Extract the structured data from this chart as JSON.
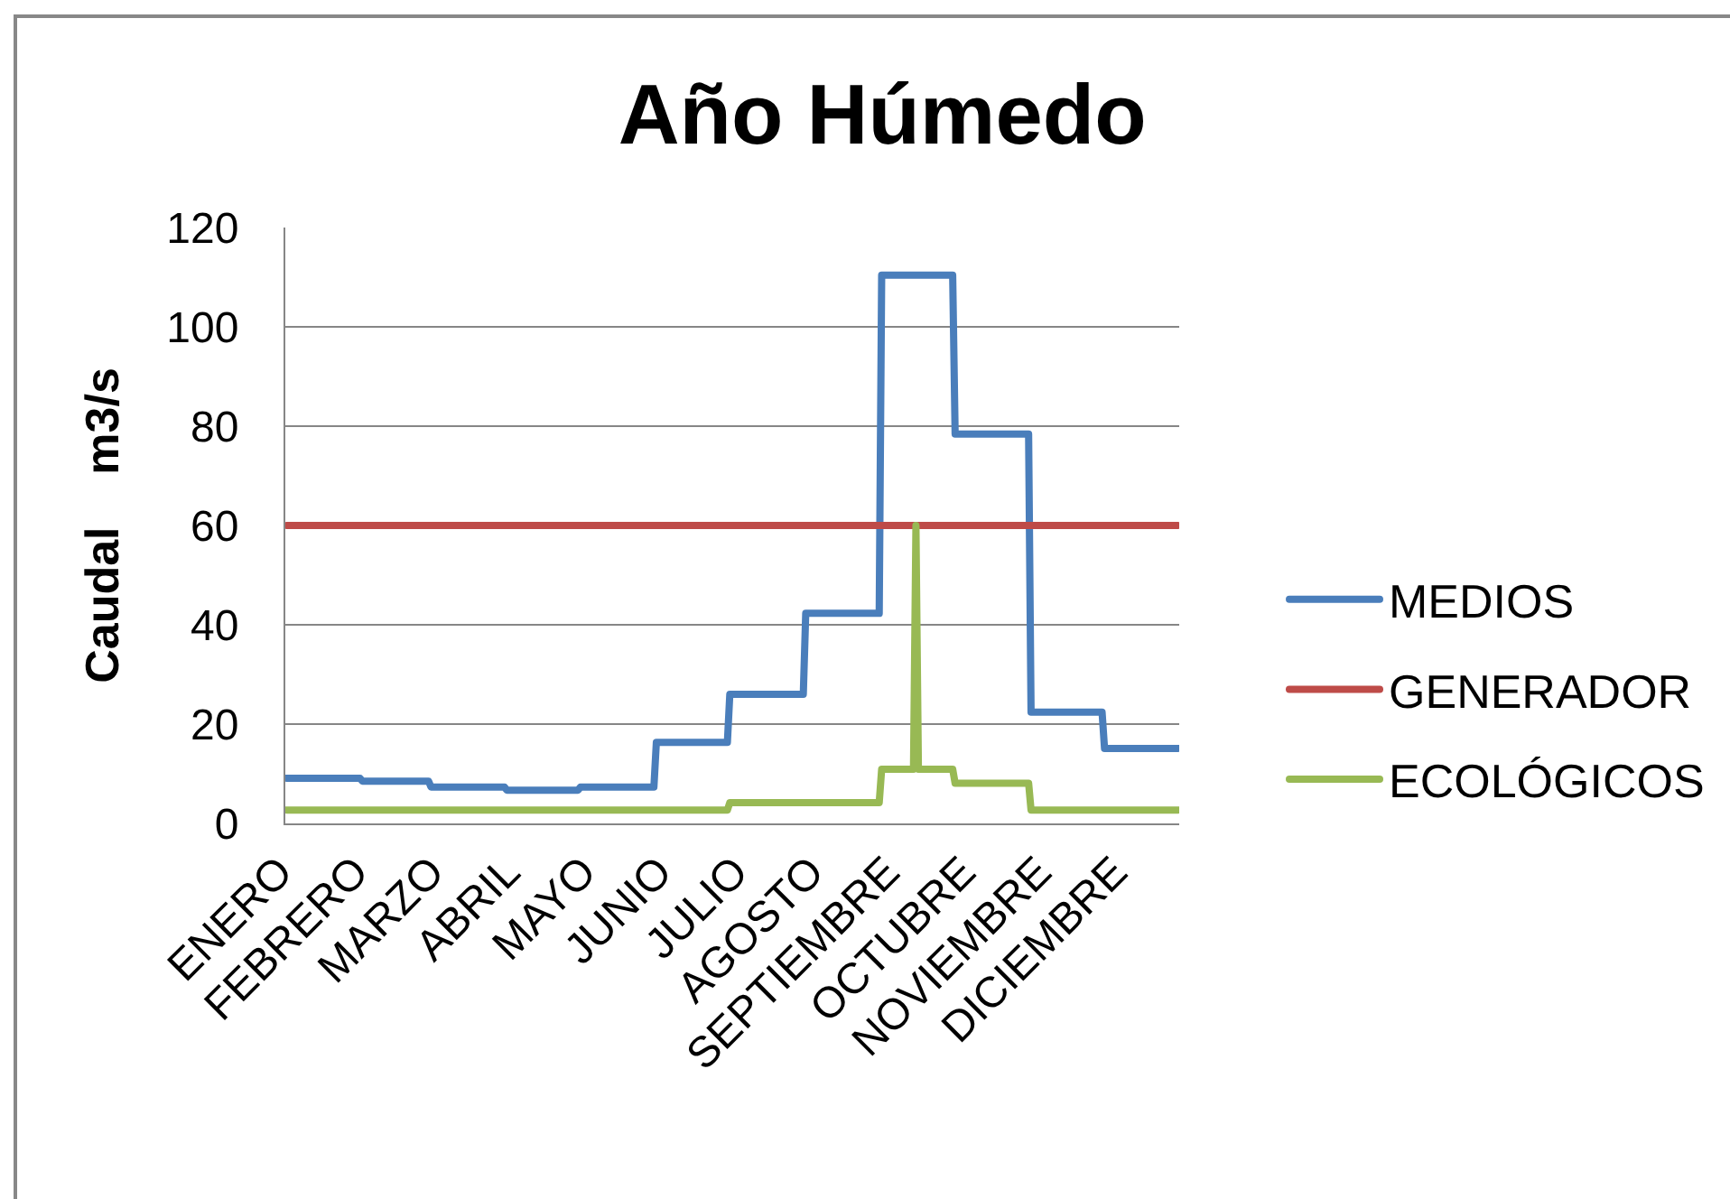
{
  "chart_data": {
    "type": "line",
    "title": "Año Húmedo",
    "ylabel": "Caudal    m3/s",
    "categories": [
      "ENERO",
      null,
      null,
      null,
      null,
      null,
      null,
      null,
      null,
      null,
      null,
      null,
      null,
      null,
      null,
      null,
      null,
      null,
      null,
      null,
      null,
      null,
      null,
      null,
      null,
      null,
      null,
      null,
      null,
      null,
      null,
      "FEBRERO",
      null,
      null,
      null,
      null,
      null,
      null,
      null,
      null,
      null,
      null,
      null,
      null,
      null,
      null,
      null,
      null,
      null,
      null,
      null,
      null,
      null,
      null,
      null,
      null,
      null,
      null,
      null,
      null,
      null,
      null,
      "MARZO",
      null,
      null,
      null,
      null,
      null,
      null,
      null,
      null,
      null,
      null,
      null,
      null,
      null,
      null,
      null,
      null,
      null,
      null,
      null,
      null,
      null,
      null,
      null,
      null,
      null,
      null,
      null,
      null,
      null,
      null,
      "ABRIL",
      null,
      null,
      null,
      null,
      null,
      null,
      null,
      null,
      null,
      null,
      null,
      null,
      null,
      null,
      null,
      null,
      null,
      null,
      null,
      null,
      null,
      null,
      null,
      null,
      null,
      null,
      null,
      null,
      null,
      null,
      "MAYO",
      null,
      null,
      null,
      null,
      null,
      null,
      null,
      null,
      null,
      null,
      null,
      null,
      null,
      null,
      null,
      null,
      null,
      null,
      null,
      null,
      null,
      null,
      null,
      null,
      null,
      null,
      null,
      null,
      null,
      null,
      "JUNIO",
      null,
      null,
      null,
      null,
      null,
      null,
      null,
      null,
      null,
      null,
      null,
      null,
      null,
      null,
      null,
      null,
      null,
      null,
      null,
      null,
      null,
      null,
      null,
      null,
      null,
      null,
      null,
      null,
      null,
      null,
      "JULIO",
      null,
      null,
      null,
      null,
      null,
      null,
      null,
      null,
      null,
      null,
      null,
      null,
      null,
      null,
      null,
      null,
      null,
      null,
      null,
      null,
      null,
      null,
      null,
      null,
      null,
      null,
      null,
      null,
      null,
      null,
      "AGOSTO",
      null,
      null,
      null,
      null,
      null,
      null,
      null,
      null,
      null,
      null,
      null,
      null,
      null,
      null,
      null,
      null,
      null,
      null,
      null,
      null,
      null,
      null,
      null,
      null,
      null,
      null,
      null,
      null,
      null,
      null,
      "SEPTIEMBRE",
      null,
      null,
      null,
      null,
      null,
      null,
      null,
      null,
      null,
      null,
      null,
      null,
      null,
      null,
      null,
      null,
      null,
      null,
      null,
      null,
      null,
      null,
      null,
      null,
      null,
      null,
      null,
      null,
      null,
      null,
      "OCTUBRE",
      null,
      null,
      null,
      null,
      null,
      null,
      null,
      null,
      null,
      null,
      null,
      null,
      null,
      null,
      null,
      null,
      null,
      null,
      null,
      null,
      null,
      null,
      null,
      null,
      null,
      null,
      null,
      null,
      null,
      null,
      "NOVIEMBRE",
      null,
      null,
      null,
      null,
      null,
      null,
      null,
      null,
      null,
      null,
      null,
      null,
      null,
      null,
      null,
      null,
      null,
      null,
      null,
      null,
      null,
      null,
      null,
      null,
      null,
      null,
      null,
      null,
      null,
      null,
      "DICIEMBRE",
      null,
      null,
      null,
      null,
      null,
      null,
      null,
      null,
      null,
      null,
      null,
      null,
      null,
      null,
      null,
      null,
      null,
      null,
      null,
      null,
      null,
      null,
      null
    ],
    "ylim": [
      0,
      120
    ],
    "yticks": [
      0,
      20,
      40,
      60,
      80,
      100,
      120
    ],
    "grid": "y",
    "legend": "right",
    "series": [
      {
        "name": "MEDIOS",
        "color": "#4a7ebb",
        "values": [
          9.1,
          9.1,
          9.1,
          9.1,
          9.1,
          9.1,
          9.1,
          9.1,
          9.1,
          9.1,
          9.1,
          9.1,
          9.1,
          9.1,
          9.1,
          9.1,
          9.1,
          9.1,
          9.1,
          9.1,
          9.1,
          9.1,
          9.1,
          9.1,
          9.1,
          9.1,
          9.1,
          9.1,
          9.1,
          9.1,
          9.1,
          8.5,
          8.5,
          8.5,
          8.5,
          8.5,
          8.5,
          8.5,
          8.5,
          8.5,
          8.5,
          8.5,
          8.5,
          8.5,
          8.5,
          8.5,
          8.5,
          8.5,
          8.5,
          8.5,
          8.5,
          8.5,
          8.5,
          8.5,
          8.5,
          8.5,
          8.5,
          8.5,
          8.5,
          7.3,
          7.3,
          7.3,
          7.3,
          7.3,
          7.3,
          7.3,
          7.3,
          7.3,
          7.3,
          7.3,
          7.3,
          7.3,
          7.3,
          7.3,
          7.3,
          7.3,
          7.3,
          7.3,
          7.3,
          7.3,
          7.3,
          7.3,
          7.3,
          7.3,
          7.3,
          7.3,
          7.3,
          7.3,
          7.3,
          7.3,
          6.7,
          6.7,
          6.7,
          6.7,
          6.7,
          6.7,
          6.7,
          6.7,
          6.7,
          6.7,
          6.7,
          6.7,
          6.7,
          6.7,
          6.7,
          6.7,
          6.7,
          6.7,
          6.7,
          6.7,
          6.7,
          6.7,
          6.7,
          6.7,
          6.7,
          6.7,
          6.7,
          6.7,
          6.7,
          6.7,
          7.3,
          7.3,
          7.3,
          7.3,
          7.3,
          7.3,
          7.3,
          7.3,
          7.3,
          7.3,
          7.3,
          7.3,
          7.3,
          7.3,
          7.3,
          7.3,
          7.3,
          7.3,
          7.3,
          7.3,
          7.3,
          7.3,
          7.3,
          7.3,
          7.3,
          7.3,
          7.3,
          7.3,
          7.3,
          7.3,
          7.3,
          16.3,
          16.3,
          16.3,
          16.3,
          16.3,
          16.3,
          16.3,
          16.3,
          16.3,
          16.3,
          16.3,
          16.3,
          16.3,
          16.3,
          16.3,
          16.3,
          16.3,
          16.3,
          16.3,
          16.3,
          16.3,
          16.3,
          16.3,
          16.3,
          16.3,
          16.3,
          16.3,
          16.3,
          16.3,
          16.3,
          26,
          26,
          26,
          26,
          26,
          26,
          26,
          26,
          26,
          26,
          26,
          26,
          26,
          26,
          26,
          26,
          26,
          26,
          26,
          26,
          26,
          26,
          26,
          26,
          26,
          26,
          26,
          26,
          26,
          26,
          26,
          42.3,
          42.3,
          42.3,
          42.3,
          42.3,
          42.3,
          42.3,
          42.3,
          42.3,
          42.3,
          42.3,
          42.3,
          42.3,
          42.3,
          42.3,
          42.3,
          42.3,
          42.3,
          42.3,
          42.3,
          42.3,
          42.3,
          42.3,
          42.3,
          42.3,
          42.3,
          42.3,
          42.3,
          42.3,
          42.3,
          42.3,
          110.4,
          110.4,
          110.4,
          110.4,
          110.4,
          110.4,
          110.4,
          110.4,
          110.4,
          110.4,
          110.4,
          110.4,
          110.4,
          110.4,
          110.4,
          110.4,
          110.4,
          110.4,
          110.4,
          110.4,
          110.4,
          110.4,
          110.4,
          110.4,
          110.4,
          110.4,
          110.4,
          110.4,
          110.4,
          110.4,
          78.4,
          78.4,
          78.4,
          78.4,
          78.4,
          78.4,
          78.4,
          78.4,
          78.4,
          78.4,
          78.4,
          78.4,
          78.4,
          78.4,
          78.4,
          78.4,
          78.4,
          78.4,
          78.4,
          78.4,
          78.4,
          78.4,
          78.4,
          78.4,
          78.4,
          78.4,
          78.4,
          78.4,
          78.4,
          78.4,
          78.4,
          22.4,
          22.4,
          22.4,
          22.4,
          22.4,
          22.4,
          22.4,
          22.4,
          22.4,
          22.4,
          22.4,
          22.4,
          22.4,
          22.4,
          22.4,
          22.4,
          22.4,
          22.4,
          22.4,
          22.4,
          22.4,
          22.4,
          22.4,
          22.4,
          22.4,
          22.4,
          22.4,
          22.4,
          22.4,
          22.4,
          15.1,
          15.1,
          15.1,
          15.1,
          15.1,
          15.1,
          15.1,
          15.1,
          15.1,
          15.1,
          15.1,
          15.1,
          15.1,
          15.1,
          15.1,
          15.1,
          15.1,
          15.1,
          15.1,
          15.1,
          15.1,
          15.1,
          15.1,
          15.1,
          15.1,
          15.1,
          15.1,
          15.1,
          15.1,
          15.1,
          15.1
        ]
      },
      {
        "name": "GENERADOR",
        "color": "#be4b48",
        "values": [
          60,
          60,
          60,
          60,
          60,
          60,
          60,
          60,
          60,
          60,
          60,
          60,
          60,
          60,
          60,
          60,
          60,
          60,
          60,
          60,
          60,
          60,
          60,
          60,
          60,
          60,
          60,
          60,
          60,
          60,
          60,
          60,
          60,
          60,
          60,
          60,
          60,
          60,
          60,
          60,
          60,
          60,
          60,
          60,
          60,
          60,
          60,
          60,
          60,
          60,
          60,
          60,
          60,
          60,
          60,
          60,
          60,
          60,
          60,
          60,
          60,
          60,
          60,
          60,
          60,
          60,
          60,
          60,
          60,
          60,
          60,
          60,
          60,
          60,
          60,
          60,
          60,
          60,
          60,
          60,
          60,
          60,
          60,
          60,
          60,
          60,
          60,
          60,
          60,
          60,
          60,
          60,
          60,
          60,
          60,
          60,
          60,
          60,
          60,
          60,
          60,
          60,
          60,
          60,
          60,
          60,
          60,
          60,
          60,
          60,
          60,
          60,
          60,
          60,
          60,
          60,
          60,
          60,
          60,
          60,
          60,
          60,
          60,
          60,
          60,
          60,
          60,
          60,
          60,
          60,
          60,
          60,
          60,
          60,
          60,
          60,
          60,
          60,
          60,
          60,
          60,
          60,
          60,
          60,
          60,
          60,
          60,
          60,
          60,
          60,
          60,
          60,
          60,
          60,
          60,
          60,
          60,
          60,
          60,
          60,
          60,
          60,
          60,
          60,
          60,
          60,
          60,
          60,
          60,
          60,
          60,
          60,
          60,
          60,
          60,
          60,
          60,
          60,
          60,
          60,
          60,
          60,
          60,
          60,
          60,
          60,
          60,
          60,
          60,
          60,
          60,
          60,
          60,
          60,
          60,
          60,
          60,
          60,
          60,
          60,
          60,
          60,
          60,
          60,
          60,
          60,
          60,
          60,
          60,
          60,
          60,
          60,
          60,
          60,
          60,
          60,
          60,
          60,
          60,
          60,
          60,
          60,
          60,
          60,
          60,
          60,
          60,
          60,
          60,
          60,
          60,
          60,
          60,
          60,
          60,
          60,
          60,
          60,
          60,
          60,
          60,
          60,
          60,
          60,
          60,
          60,
          60,
          60,
          60,
          60,
          60,
          60,
          60,
          60,
          60,
          60,
          60,
          60,
          60,
          60,
          60,
          60,
          60,
          60,
          60,
          60,
          60,
          60,
          60,
          60,
          60,
          60,
          60,
          60,
          60,
          60,
          60,
          60,
          60,
          60,
          60,
          60,
          60,
          60,
          60,
          60,
          60,
          60,
          60,
          60,
          60,
          60,
          60,
          60,
          60,
          60,
          60,
          60,
          60,
          60,
          60,
          60,
          60,
          60,
          60,
          60,
          60,
          60,
          60,
          60,
          60,
          60,
          60,
          60,
          60,
          60,
          60,
          60,
          60,
          60,
          60,
          60,
          60,
          60,
          60,
          60,
          60,
          60,
          60,
          60,
          60,
          60,
          60,
          60,
          60,
          60,
          60,
          60,
          60,
          60,
          60,
          60,
          60,
          60,
          60,
          60,
          60,
          60,
          60,
          60,
          60,
          60,
          60,
          60,
          60,
          60,
          60,
          60,
          60,
          60,
          60,
          60,
          60,
          60,
          60
        ]
      },
      {
        "name": "ECOLÓGICOS",
        "color": "#98b954",
        "values": [
          2.7,
          2.7,
          2.7,
          2.7,
          2.7,
          2.7,
          2.7,
          2.7,
          2.7,
          2.7,
          2.7,
          2.7,
          2.7,
          2.7,
          2.7,
          2.7,
          2.7,
          2.7,
          2.7,
          2.7,
          2.7,
          2.7,
          2.7,
          2.7,
          2.7,
          2.7,
          2.7,
          2.7,
          2.7,
          2.7,
          2.7,
          2.7,
          2.7,
          2.7,
          2.7,
          2.7,
          2.7,
          2.7,
          2.7,
          2.7,
          2.7,
          2.7,
          2.7,
          2.7,
          2.7,
          2.7,
          2.7,
          2.7,
          2.7,
          2.7,
          2.7,
          2.7,
          2.7,
          2.7,
          2.7,
          2.7,
          2.7,
          2.7,
          2.7,
          2.7,
          2.7,
          2.7,
          2.7,
          2.7,
          2.7,
          2.7,
          2.7,
          2.7,
          2.7,
          2.7,
          2.7,
          2.7,
          2.7,
          2.7,
          2.7,
          2.7,
          2.7,
          2.7,
          2.7,
          2.7,
          2.7,
          2.7,
          2.7,
          2.7,
          2.7,
          2.7,
          2.7,
          2.7,
          2.7,
          2.7,
          2.7,
          2.7,
          2.7,
          2.7,
          2.7,
          2.7,
          2.7,
          2.7,
          2.7,
          2.7,
          2.7,
          2.7,
          2.7,
          2.7,
          2.7,
          2.7,
          2.7,
          2.7,
          2.7,
          2.7,
          2.7,
          2.7,
          2.7,
          2.7,
          2.7,
          2.7,
          2.7,
          2.7,
          2.7,
          2.7,
          2.7,
          2.7,
          2.7,
          2.7,
          2.7,
          2.7,
          2.7,
          2.7,
          2.7,
          2.7,
          2.7,
          2.7,
          2.7,
          2.7,
          2.7,
          2.7,
          2.7,
          2.7,
          2.7,
          2.7,
          2.7,
          2.7,
          2.7,
          2.7,
          2.7,
          2.7,
          2.7,
          2.7,
          2.7,
          2.7,
          2.7,
          2.7,
          2.7,
          2.7,
          2.7,
          2.7,
          2.7,
          2.7,
          2.7,
          2.7,
          2.7,
          2.7,
          2.7,
          2.7,
          2.7,
          2.7,
          2.7,
          2.7,
          2.7,
          2.7,
          2.7,
          2.7,
          2.7,
          2.7,
          2.7,
          2.7,
          2.7,
          2.7,
          2.7,
          2.7,
          2.7,
          4.2,
          4.2,
          4.2,
          4.2,
          4.2,
          4.2,
          4.2,
          4.2,
          4.2,
          4.2,
          4.2,
          4.2,
          4.2,
          4.2,
          4.2,
          4.2,
          4.2,
          4.2,
          4.2,
          4.2,
          4.2,
          4.2,
          4.2,
          4.2,
          4.2,
          4.2,
          4.2,
          4.2,
          4.2,
          4.2,
          4.2,
          4.2,
          4.2,
          4.2,
          4.2,
          4.2,
          4.2,
          4.2,
          4.2,
          4.2,
          4.2,
          4.2,
          4.2,
          4.2,
          4.2,
          4.2,
          4.2,
          4.2,
          4.2,
          4.2,
          4.2,
          4.2,
          4.2,
          4.2,
          4.2,
          4.2,
          4.2,
          4.2,
          4.2,
          4.2,
          4.2,
          4.2,
          10.9,
          10.9,
          10.9,
          10.9,
          10.9,
          10.9,
          10.9,
          10.9,
          10.9,
          10.9,
          10.9,
          10.9,
          10.9,
          10.9,
          60,
          10.9,
          10.9,
          10.9,
          10.9,
          10.9,
          10.9,
          10.9,
          10.9,
          10.9,
          10.9,
          10.9,
          10.9,
          10.9,
          10.9,
          10.9,
          8.1,
          8.1,
          8.1,
          8.1,
          8.1,
          8.1,
          8.1,
          8.1,
          8.1,
          8.1,
          8.1,
          8.1,
          8.1,
          8.1,
          8.1,
          8.1,
          8.1,
          8.1,
          8.1,
          8.1,
          8.1,
          8.1,
          8.1,
          8.1,
          8.1,
          8.1,
          8.1,
          8.1,
          8.1,
          8.1,
          8.1,
          2.7,
          2.7,
          2.7,
          2.7,
          2.7,
          2.7,
          2.7,
          2.7,
          2.7,
          2.7,
          2.7,
          2.7,
          2.7,
          2.7,
          2.7,
          2.7,
          2.7,
          2.7,
          2.7,
          2.7,
          2.7,
          2.7,
          2.7,
          2.7,
          2.7,
          2.7,
          2.7,
          2.7,
          2.7,
          2.7,
          2.7,
          2.7,
          2.7,
          2.7,
          2.7,
          2.7,
          2.7,
          2.7,
          2.7,
          2.7,
          2.7,
          2.7,
          2.7,
          2.7,
          2.7,
          2.7,
          2.7,
          2.7,
          2.7,
          2.7,
          2.7,
          2.7,
          2.7,
          2.7,
          2.7,
          2.7,
          2.7,
          2.7,
          2.7,
          2.7,
          2.7
        ]
      }
    ]
  }
}
